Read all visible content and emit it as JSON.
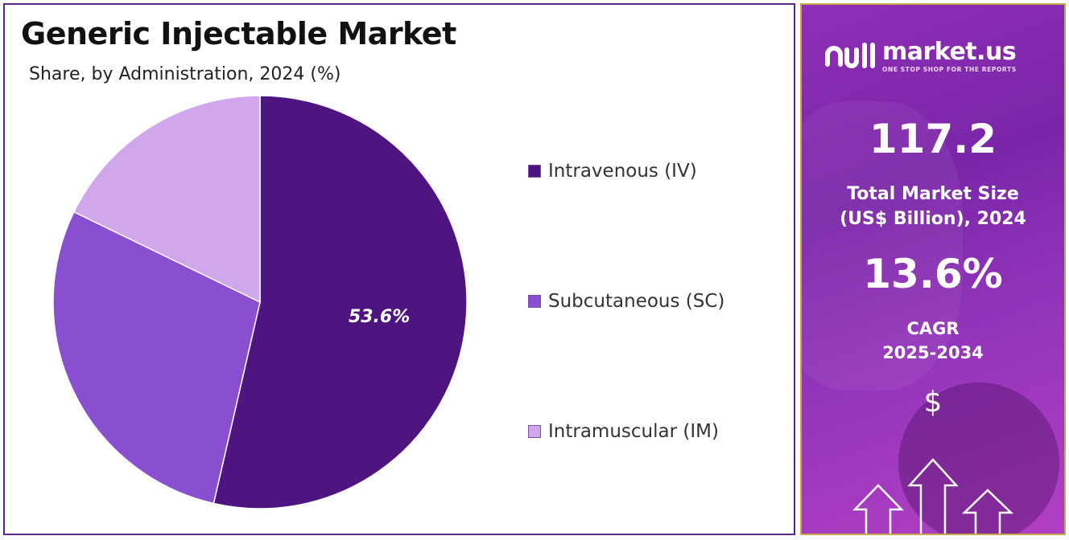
{
  "chart_data": {
    "type": "pie",
    "title": "Generic Injectable Market",
    "subtitle": "Share, by Administration, 2024 (%)",
    "categories": [
      "Intravenous (IV)",
      "Subcutaneous (SC)",
      "Intramuscular (IM)"
    ],
    "values": [
      53.6,
      28.6,
      17.8
    ],
    "colors": [
      "#4e1480",
      "#8a4fd1",
      "#d0a6ec"
    ],
    "data_labels": [
      "53.6%",
      "",
      ""
    ],
    "legend_position": "right"
  },
  "sidebar": {
    "brand_name": "market.us",
    "brand_tagline": "ONE STOP SHOP FOR THE REPORTS",
    "market_size_value": "117.2",
    "market_size_label_line1": "Total Market Size",
    "market_size_label_line2": "(US$ Billion), 2024",
    "cagr_value": "13.6%",
    "cagr_label_line1": "CAGR",
    "cagr_label_line2": "2025-2034",
    "currency_symbol": "$",
    "icons": [
      "market-us-logo-icon",
      "dollar-icon",
      "up-arrow-icon"
    ]
  }
}
